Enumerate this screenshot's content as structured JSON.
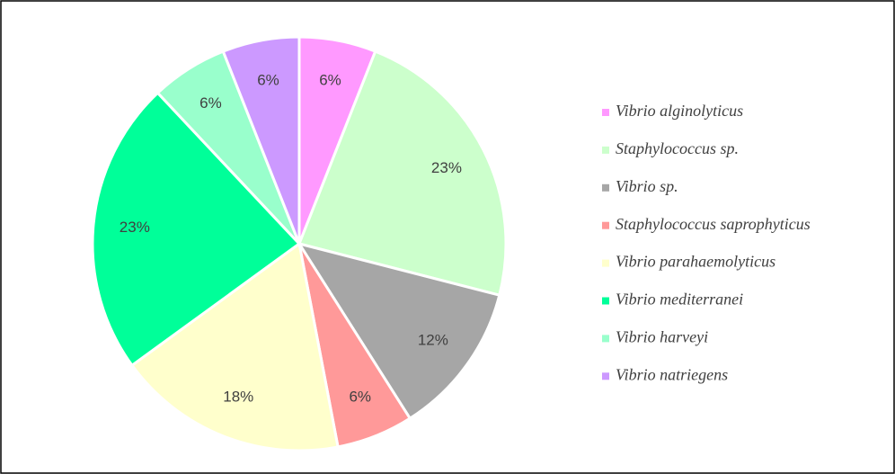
{
  "chart_data": {
    "type": "pie",
    "categories": [
      "Vibrio alginolyticus",
      "Staphylococcus sp.",
      "Vibrio sp.",
      "Staphylococcus saprophyticus",
      "Vibrio parahaemolyticus",
      "Vibrio mediterranei",
      "Vibrio harveyi",
      "Vibrio natriegens"
    ],
    "values": [
      6,
      23,
      12,
      6,
      18,
      23,
      6,
      6
    ],
    "value_labels": [
      "6%",
      "23%",
      "12%",
      "6%",
      "18%",
      "23%",
      "6%",
      "6%"
    ],
    "colors": [
      "#ff99ff",
      "#ccffcc",
      "#a6a6a6",
      "#ff9999",
      "#ffffcc",
      "#00ff99",
      "#99ffcc",
      "#cc99ff"
    ],
    "legend": "right"
  }
}
